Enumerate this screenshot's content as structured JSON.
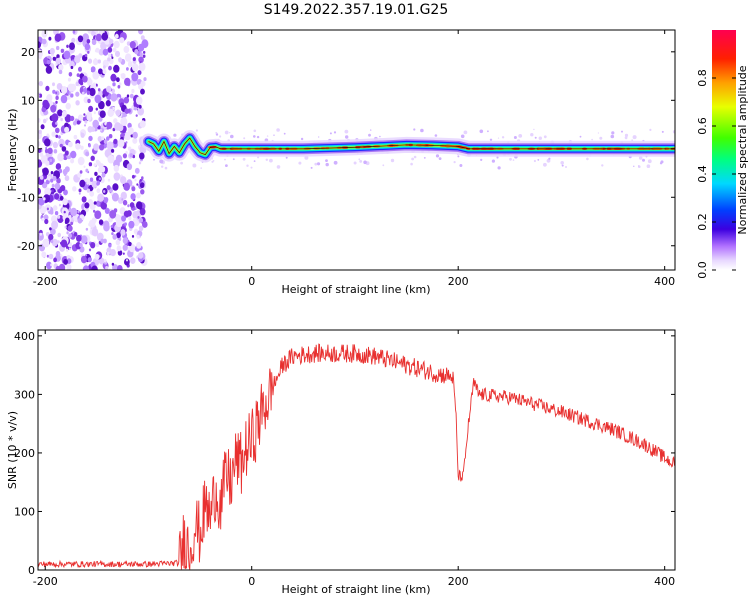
{
  "title": "S149.2022.357.19.01.G25",
  "chart_data": [
    {
      "type": "heatmap",
      "name": "spectrogram",
      "xlabel": "Height of straight line (km)",
      "ylabel": "Frequency (Hz)",
      "xlim": [
        -207,
        410
      ],
      "ylim": [
        -25,
        24.5
      ],
      "xticks": [
        -200,
        0,
        200,
        400
      ],
      "xtick_labels": [
        "-200",
        "0",
        "200",
        "400"
      ],
      "yticks": [
        -20,
        -10,
        0,
        10,
        20
      ],
      "ytick_labels": [
        "-20",
        "-10",
        "0",
        "10",
        "20"
      ],
      "grid": false,
      "colorbar": {
        "label": "Normalized spectral amplitude",
        "range": [
          0,
          1
        ],
        "ticks": [
          0.0,
          0.2,
          0.4,
          0.6,
          0.8
        ],
        "tick_labels": [
          "0.0",
          "0.2",
          "0.4",
          "0.6",
          "0.8"
        ]
      },
      "noise_region_x": [
        -207,
        -103
      ],
      "signal_track": [
        [
          -100,
          1.5
        ],
        [
          -95,
          1.0
        ],
        [
          -90,
          -0.5
        ],
        [
          -85,
          1.5
        ],
        [
          -80,
          -1.0
        ],
        [
          -75,
          0.5
        ],
        [
          -70,
          -0.8
        ],
        [
          -65,
          1.0
        ],
        [
          -60,
          2.2
        ],
        [
          -55,
          0.5
        ],
        [
          -50,
          -0.8
        ],
        [
          -45,
          -1.2
        ],
        [
          -40,
          0.3
        ],
        [
          -35,
          0.4
        ],
        [
          -30,
          0.0
        ],
        [
          -20,
          0.0
        ],
        [
          0,
          0.0
        ],
        [
          50,
          0.0
        ],
        [
          100,
          0.3
        ],
        [
          150,
          0.8
        ],
        [
          175,
          0.7
        ],
        [
          200,
          0.5
        ],
        [
          210,
          0.0
        ],
        [
          230,
          0.0
        ],
        [
          250,
          0.0
        ],
        [
          300,
          0.0
        ],
        [
          350,
          0.0
        ],
        [
          400,
          0.0
        ],
        [
          410,
          0.0
        ]
      ]
    },
    {
      "type": "line",
      "name": "snr",
      "xlabel": "Height of straight line (km)",
      "ylabel": "SNR (10 * v/v)",
      "xlim": [
        -207,
        410
      ],
      "ylim": [
        0,
        410
      ],
      "xticks": [
        -200,
        0,
        200,
        400
      ],
      "xtick_labels": [
        "-200",
        "0",
        "200",
        "400"
      ],
      "yticks": [
        0,
        100,
        200,
        300,
        400
      ],
      "ytick_labels": [
        "0",
        "100",
        "200",
        "300",
        "400"
      ],
      "grid": false,
      "color": "#e8302f",
      "series": [
        {
          "x": [
            -207,
            -150,
            -100,
            -70,
            -65,
            -60,
            -55,
            -50,
            -45,
            -40,
            -35,
            -30,
            -25,
            -20,
            -15,
            -10,
            -5,
            0,
            10,
            20,
            30,
            40,
            60,
            80,
            100,
            120,
            140,
            160,
            180,
            195,
            198,
            200,
            205,
            210,
            215,
            220,
            250,
            300,
            350,
            380,
            410
          ],
          "y": [
            10,
            10,
            10,
            12,
            60,
            30,
            80,
            60,
            110,
            90,
            140,
            110,
            160,
            150,
            190,
            180,
            210,
            220,
            270,
            310,
            350,
            365,
            370,
            370,
            370,
            365,
            355,
            345,
            335,
            330,
            260,
            160,
            160,
            250,
            320,
            300,
            295,
            270,
            240,
            215,
            180
          ]
        }
      ]
    }
  ]
}
